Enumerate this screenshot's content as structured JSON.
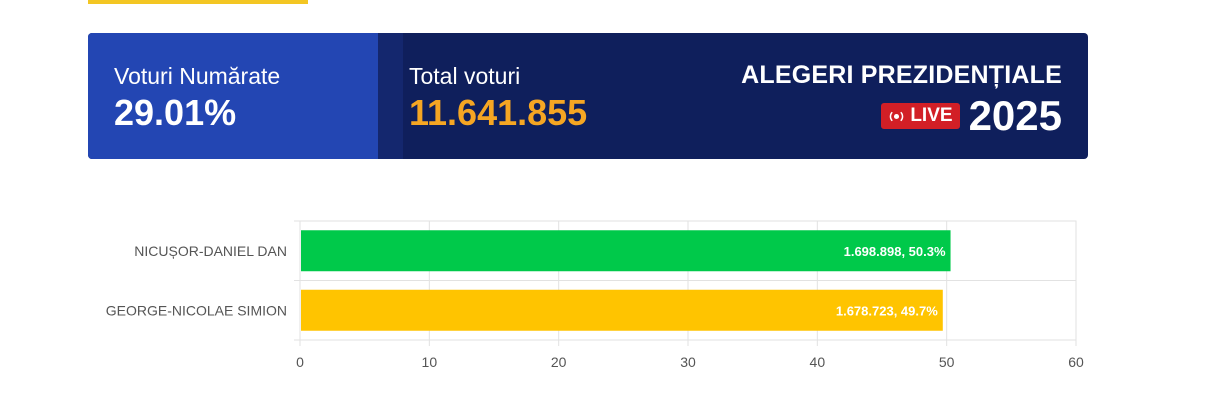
{
  "header": {
    "counted_label": "Voturi Numărate",
    "counted_value": "29.01%",
    "total_label": "Total voturi",
    "total_value": "11.641.855",
    "title": "ALEGERI PREZIDENȚIALE",
    "live_label": "LIVE",
    "year": "2025"
  },
  "colors": {
    "accent": "#f3c623",
    "panel_blue": "#2346b3",
    "panel_dark": "#0f1f5c",
    "orange_value": "#f5a623",
    "live_red": "#d21f26"
  },
  "icons": {
    "live": "live-broadcast-icon"
  },
  "chart_data": {
    "type": "bar",
    "orientation": "horizontal",
    "categories": [
      "NICUȘOR-DANIEL DAN",
      "GEORGE-NICOLAE SIMION"
    ],
    "values": [
      50.3,
      49.7
    ],
    "data_labels": [
      "1.698.898, 50.3%",
      "1.678.723, 49.7%"
    ],
    "colors": [
      "#00c94a",
      "#ffc400"
    ],
    "xlim": [
      0,
      60
    ],
    "xticks": [
      0,
      10,
      20,
      30,
      40,
      50,
      60
    ],
    "grid": true
  }
}
